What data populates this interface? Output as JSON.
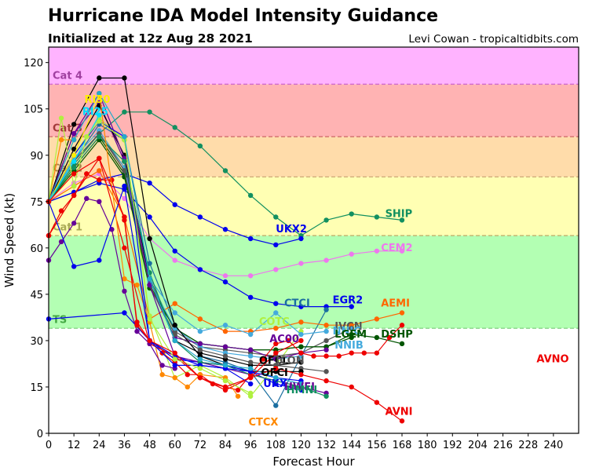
{
  "header": {
    "title": "Hurricane IDA Model Intensity Guidance",
    "subtitle": "Initialized at 12z Aug 28 2021",
    "credit": "Levi Cowan - tropicaltidbits.com"
  },
  "chart_data": {
    "type": "line",
    "title": "Hurricane IDA Model Intensity Guidance",
    "subtitle": "Initialized at 12z Aug 28 2021",
    "xlabel": "Forecast Hour",
    "ylabel": "Wind Speed (kt)",
    "xlim": [
      0,
      252
    ],
    "ylim": [
      0,
      125
    ],
    "xticks": [
      0,
      12,
      24,
      36,
      48,
      60,
      72,
      84,
      96,
      108,
      120,
      132,
      144,
      156,
      168,
      180,
      192,
      204,
      216,
      228,
      240
    ],
    "yticks": [
      0,
      15,
      30,
      45,
      60,
      75,
      90,
      105,
      120
    ],
    "grid": false,
    "categories_bands": [
      {
        "name": "TS",
        "min": 34,
        "max": 64,
        "color": "#b3ffb3",
        "label_color": "#44aa44",
        "label_value": 37
      },
      {
        "name": "Cat 1",
        "min": 64,
        "max": 83,
        "color": "#ffffb3",
        "label_color": "#aaaa55",
        "label_value": 67
      },
      {
        "name": "Cat 2",
        "min": 83,
        "max": 96,
        "color": "#ffdcaa",
        "label_color": "#a9834a",
        "label_value": 86
      },
      {
        "name": "Cat 3",
        "min": 96,
        "max": 113,
        "color": "#ffb3b3",
        "label_color": "#a33a3a",
        "label_value": 99
      },
      {
        "name": "Cat 4",
        "min": 113,
        "max": 125,
        "color": "#ffb3ff",
        "label_color": "#a040a0",
        "label_value": 116
      }
    ],
    "series": [
      {
        "name": "SHIP",
        "color": "#129060",
        "label": true,
        "x": [
          0,
          12,
          24,
          36,
          48,
          60,
          72,
          84,
          96,
          108,
          120,
          132,
          144,
          156,
          168
        ],
        "values": [
          75,
          87,
          97,
          104,
          104,
          99,
          93,
          85,
          77,
          70,
          64,
          69,
          71,
          70,
          69
        ]
      },
      {
        "name": "UKX2",
        "color": "#0000ee",
        "label": true,
        "x": [
          0,
          12,
          24,
          36,
          48,
          60,
          72,
          84,
          96,
          108,
          120
        ],
        "values": [
          75,
          78,
          82,
          84,
          81,
          74,
          70,
          66,
          63,
          61,
          63
        ]
      },
      {
        "name": "CEM2",
        "color": "#ee77ee",
        "label": true,
        "x": [
          0,
          12,
          24,
          36,
          48,
          60,
          72,
          84,
          96,
          108,
          120,
          132,
          144,
          156,
          168
        ],
        "values": [
          75,
          81,
          84,
          76,
          63,
          56,
          53,
          51,
          51,
          53,
          55,
          56,
          58,
          59,
          59
        ]
      },
      {
        "name": "EGR2",
        "color": "#0000ee",
        "label": true,
        "x": [
          0,
          12,
          24,
          36,
          48,
          60,
          72,
          84,
          96,
          108,
          120,
          132,
          144
        ],
        "values": [
          75,
          78,
          81,
          79,
          70,
          59,
          53,
          49,
          44,
          42,
          41,
          41,
          41
        ]
      },
      {
        "name": "CTCI",
        "color": "#1a6ea0",
        "label": true,
        "x": [
          0,
          12,
          24,
          36,
          48,
          60,
          72,
          84,
          96,
          108,
          120,
          132
        ],
        "values": [
          75,
          88,
          100,
          95,
          55,
          35,
          25,
          23,
          20,
          9,
          25,
          40
        ]
      },
      {
        "name": "AEMI",
        "color": "#ff6600",
        "label": true,
        "x": [
          0,
          12,
          24,
          36,
          48,
          60,
          72,
          84,
          96,
          108,
          120,
          132,
          144,
          156,
          168
        ],
        "values": [
          75,
          80,
          85,
          70,
          37,
          42,
          37,
          33,
          33,
          34,
          36,
          35,
          35,
          37,
          39
        ]
      },
      {
        "name": "COTC",
        "color": "#b0f040",
        "label": true,
        "x": [
          0,
          12,
          24,
          36,
          48,
          60,
          72,
          84,
          96,
          108,
          120
        ],
        "values": [
          75,
          90,
          102,
          95,
          38,
          18,
          22,
          18,
          12,
          22,
          33
        ]
      },
      {
        "name": "IVCN",
        "color": "#555555",
        "label": true,
        "x": [
          0,
          12,
          24,
          36,
          48,
          60,
          72,
          84,
          96,
          108,
          120,
          132,
          144
        ],
        "values": [
          75,
          88,
          97,
          86,
          50,
          33,
          28,
          27,
          26,
          25,
          26,
          30,
          34
        ]
      },
      {
        "name": "NNIC",
        "color": "#44aadd",
        "label": true,
        "x": [
          0,
          12,
          24,
          36,
          48,
          60,
          72,
          84,
          96,
          108,
          120,
          132
        ],
        "values": [
          75,
          89,
          98,
          86,
          50,
          39,
          33,
          35,
          32,
          39,
          32,
          33
        ]
      },
      {
        "name": "LGEM",
        "color": "#005500",
        "label": true,
        "x": [
          0,
          12,
          24,
          36,
          48,
          60,
          72,
          84,
          96,
          108,
          120,
          132,
          144
        ],
        "values": [
          75,
          86,
          96,
          84,
          48,
          34,
          29,
          28,
          27,
          27,
          28,
          28,
          31
        ]
      },
      {
        "name": "DSHP",
        "color": "#005500",
        "label": true,
        "x": [
          0,
          12,
          24,
          36,
          48,
          60,
          72,
          84,
          96,
          108,
          120,
          132,
          144,
          156,
          168
        ],
        "values": [
          75,
          85,
          95,
          83,
          47,
          34,
          29,
          28,
          27,
          27,
          28,
          28,
          32,
          31,
          29
        ]
      },
      {
        "name": "NNIB",
        "color": "#44aadd",
        "label": true,
        "x": [
          0,
          12,
          24,
          36,
          48,
          60,
          72,
          84,
          96,
          108,
          120
        ],
        "values": [
          75,
          88,
          97,
          85,
          49,
          34,
          28,
          26,
          25,
          24,
          25
        ]
      },
      {
        "name": "AC00",
        "color": "#660099",
        "label": true,
        "x": [
          0,
          12,
          24,
          36,
          48,
          60,
          72,
          84,
          96,
          108,
          120,
          132
        ],
        "values": [
          75,
          97,
          107,
          88,
          48,
          31,
          29,
          28,
          27,
          24,
          26,
          27
        ]
      },
      {
        "name": "OFCL",
        "color": "#000000",
        "label": true,
        "x": [
          0,
          12,
          24,
          36,
          48,
          60,
          72,
          84,
          96,
          108,
          120
        ],
        "values": [
          75,
          92,
          106,
          90,
          50,
          30,
          26,
          24,
          22,
          22,
          23
        ]
      },
      {
        "name": "ICON",
        "color": "#555555",
        "label": true,
        "x": [
          0,
          12,
          24,
          36,
          48,
          60,
          72,
          84,
          96,
          108,
          120,
          132
        ],
        "values": [
          75,
          88,
          97,
          85,
          48,
          32,
          27,
          25,
          23,
          22,
          21,
          20
        ]
      },
      {
        "name": "OFCI",
        "color": "#000000",
        "label": true,
        "x": [
          0,
          12,
          24,
          36,
          48,
          60,
          72,
          84,
          96,
          108,
          120
        ],
        "values": [
          75,
          100,
          115,
          115,
          63,
          35,
          25,
          22,
          20,
          20,
          20
        ]
      },
      {
        "name": "UKX",
        "color": "#0000ee",
        "label": true,
        "x": [
          0,
          12,
          24,
          36,
          48,
          60,
          72,
          84,
          96,
          108,
          120
        ],
        "values": [
          75,
          90,
          101,
          96,
          30,
          24,
          23,
          22,
          20,
          16,
          14
        ]
      },
      {
        "name": "HWFI",
        "color": "#660099",
        "label": true,
        "x": [
          0,
          12,
          24,
          36,
          48,
          60,
          72,
          84,
          96,
          108,
          120,
          132
        ],
        "values": [
          75,
          97,
          110,
          89,
          48,
          25,
          23,
          21,
          19,
          17,
          15,
          13
        ]
      },
      {
        "name": "HMNI",
        "color": "#129060",
        "label": true,
        "x": [
          0,
          12,
          24,
          36,
          48,
          60,
          72,
          84,
          96,
          108,
          120,
          132
        ],
        "values": [
          75,
          86,
          96,
          88,
          52,
          30,
          23,
          22,
          19,
          17,
          15,
          12
        ]
      },
      {
        "name": "AVNI",
        "color": "#ee0000",
        "label": true,
        "x": [
          0,
          12,
          24,
          36,
          48,
          60,
          72,
          84,
          96,
          108,
          120,
          132,
          144,
          156,
          168
        ],
        "values": [
          64,
          77,
          89,
          60,
          29,
          25,
          18,
          14,
          18,
          21,
          19,
          17,
          15,
          10,
          4
        ]
      },
      {
        "name": "AVNO",
        "color": "#ee0000",
        "label": true,
        "x": [
          0,
          6,
          12,
          18,
          24,
          30,
          36,
          42,
          48,
          54,
          60,
          66,
          72,
          78,
          84,
          90,
          96,
          102,
          108,
          114,
          120,
          126,
          132,
          138,
          144,
          150,
          156,
          162,
          168
        ],
        "values": [
          64,
          72,
          77,
          84,
          82,
          82,
          69,
          36,
          30,
          26,
          23,
          19,
          19,
          16,
          15,
          14,
          19,
          24,
          29,
          30,
          26,
          25,
          25,
          25,
          26,
          26,
          26,
          31,
          35
        ]
      },
      {
        "name": "RI30",
        "color": "#ffee00",
        "label": true,
        "x": [
          0,
          12,
          24
        ],
        "values": [
          75,
          90,
          109
        ]
      },
      {
        "name": "RI25",
        "color": "#00ddff",
        "label": true,
        "x": [
          0,
          12,
          24
        ],
        "values": [
          75,
          88,
          103
        ]
      },
      {
        "name": "CTCX",
        "color": "#ff8800",
        "label": true,
        "x": [
          0,
          6,
          12,
          24,
          36,
          42,
          48,
          54,
          60,
          66,
          72,
          84,
          90
        ],
        "values": [
          75,
          95,
          95,
          110,
          50,
          48,
          36,
          19,
          18,
          15,
          19,
          18,
          12
        ]
      },
      {
        "name": "TS-track",
        "color": "#0000ee",
        "label": false,
        "x": [
          0,
          36,
          48,
          60,
          72,
          84,
          96,
          108,
          120
        ],
        "values": [
          37,
          39,
          30,
          25,
          22,
          21,
          20,
          18,
          17
        ]
      },
      {
        "name": "purple-low",
        "color": "#660099",
        "label": false,
        "x": [
          0,
          6,
          12,
          18,
          24,
          30,
          36,
          42,
          48,
          54,
          60
        ],
        "values": [
          56,
          62,
          68,
          76,
          75,
          66,
          46,
          33,
          29,
          22,
          21
        ]
      },
      {
        "name": "blue-low",
        "color": "#0000ee",
        "label": false,
        "x": [
          0,
          12,
          24,
          36,
          48,
          60,
          72,
          84,
          96
        ],
        "values": [
          75,
          54,
          56,
          80,
          30,
          22,
          22,
          21,
          16
        ]
      },
      {
        "name": "lime-early",
        "color": "#b0f040",
        "label": false,
        "x": [
          0,
          6,
          12,
          18,
          24,
          36,
          48,
          60,
          72,
          84,
          96
        ],
        "values": [
          75,
          102,
          80,
          96,
          101,
          95,
          37,
          24,
          21,
          17,
          13
        ]
      },
      {
        "name": "teal-extra",
        "color": "#22aacc",
        "label": false,
        "x": [
          0,
          12,
          24,
          36,
          48,
          60,
          72,
          84,
          96,
          108,
          120
        ],
        "values": [
          75,
          95,
          110,
          96,
          50,
          30,
          24,
          22,
          21,
          18,
          16
        ]
      },
      {
        "name": "red-extra",
        "color": "#ee0000",
        "label": false,
        "x": [
          0,
          12,
          24,
          36,
          42,
          48,
          60,
          72,
          84,
          96,
          108,
          120
        ],
        "values": [
          75,
          84,
          89,
          70,
          35,
          30,
          26,
          18,
          15,
          18,
          26,
          30
        ]
      }
    ]
  }
}
